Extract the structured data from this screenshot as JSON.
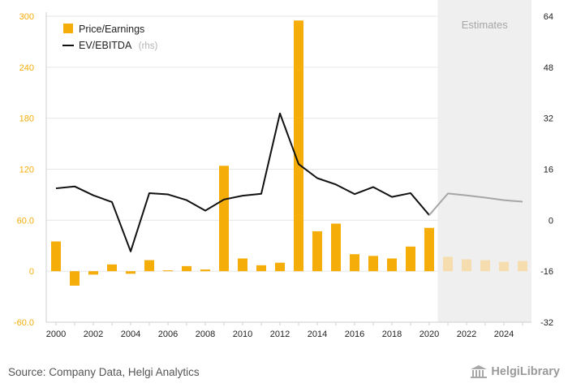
{
  "colors": {
    "bar": "#f5ad0a",
    "bar_estimate": "#f6ddb0",
    "line": "#111111",
    "line_estimate": "#a6a6a6",
    "estimate_band": "#efefef",
    "left_axis_labels": "#f5ad0a"
  },
  "legend": {
    "pe_label": "Price/Earnings",
    "ev_label": "EV/EBITDA",
    "ev_suffix": "(rhs)"
  },
  "estimates_label": "Estimates",
  "footer": {
    "source": "Source: Company Data, Helgi Analytics",
    "brand": "HelgiLibrary",
    "brand_icon": "library-building-icon"
  },
  "chart_data": {
    "type": "bar",
    "x": [
      2000,
      2001,
      2002,
      2003,
      2004,
      2005,
      2006,
      2007,
      2008,
      2009,
      2010,
      2011,
      2012,
      2013,
      2014,
      2015,
      2016,
      2017,
      2018,
      2019,
      2020,
      2021,
      2022,
      2023,
      2024,
      2025
    ],
    "x_tick_labels": [
      "2000",
      "2002",
      "2004",
      "2006",
      "2008",
      "2010",
      "2012",
      "2014",
      "2016",
      "2018",
      "2020",
      "2022",
      "2024"
    ],
    "estimate_start": 2021,
    "series": [
      {
        "name": "Price/Earnings",
        "type": "bar",
        "axis": "left",
        "values": [
          35,
          -17,
          -4,
          8,
          -3,
          13,
          1,
          6,
          2,
          124,
          15,
          7,
          10,
          295,
          47,
          56,
          20,
          18,
          15,
          29,
          51,
          17,
          14,
          13,
          11,
          12
        ]
      },
      {
        "name": "EV/EBITDA",
        "type": "line",
        "axis": "right",
        "values": [
          10,
          10.6,
          7.8,
          5.7,
          -9.8,
          8.5,
          8.1,
          6.3,
          3,
          6.5,
          7.7,
          8.3,
          33.5,
          17.6,
          13.2,
          11.2,
          8.2,
          10.4,
          7.3,
          8.5,
          1.6,
          8.4,
          7.8,
          7.1,
          6.3,
          5.8
        ]
      }
    ],
    "y_left": {
      "ylim": [
        -60,
        300
      ],
      "ticks": [
        "-60.0",
        "0",
        "60.0",
        "120",
        "180",
        "240",
        "300"
      ]
    },
    "y_right": {
      "ylim": [
        -32,
        64
      ],
      "ticks": [
        "-32",
        "-16",
        "0",
        "16",
        "32",
        "48",
        "64"
      ]
    },
    "grid": true,
    "legend_position": "top-left"
  }
}
